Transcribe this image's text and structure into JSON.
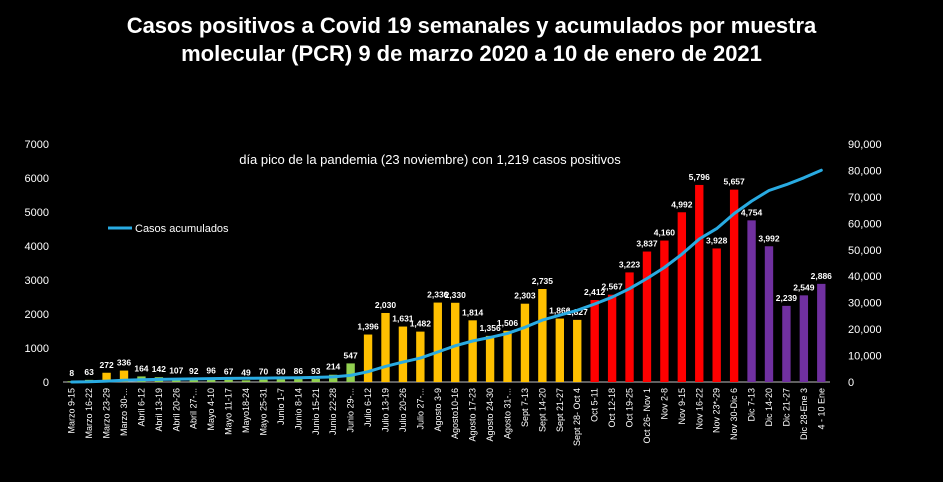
{
  "title_lines": [
    "Casos positivos a Covid 19 semanales y acumulados por muestra",
    "molecular (PCR) 9 de marzo 2020 a 10 de enero de 2021"
  ],
  "chart_data": {
    "type": "bar",
    "annotation": "día pico de la pandemia (23 noviembre) con 1,219 casos positivos",
    "legend": {
      "label": "Casos acumulados",
      "placement": "left"
    },
    "ylim": [
      0,
      7000
    ],
    "y_ticks": [
      0,
      1000,
      2000,
      3000,
      4000,
      5000,
      6000,
      7000
    ],
    "y2lim": [
      0,
      90000
    ],
    "y2_ticks": [
      "0",
      "10,000",
      "20,000",
      "30,000",
      "40,000",
      "50,000",
      "60,000",
      "70,000",
      "80,000",
      "90,000"
    ],
    "colors": {
      "green": "#92d050",
      "orange": "#ffc000",
      "red": "#ff0000",
      "purple": "#7030a0",
      "line": "#29abe2"
    },
    "categories": [
      "Marzo 9-15",
      "Marzo 16-22",
      "Marzo 23-29",
      "Marzo 30-...",
      "Abril 6-12",
      "Abril 13-19",
      "Abril 20-26",
      "Abril 27-...",
      "Mayo 4-10",
      "Mayo 11-17",
      "Mayo18-24",
      "Mayo 25-31",
      "Junio 1-7",
      "Junio 8-14",
      "Junio 15-21",
      "Junio 22-28",
      "Junio 29-...",
      "Julio 6-12",
      "Julio 13-19",
      "Julio 20-26",
      "Julio 27-...",
      "Agosto 3-9",
      "Agosto10-16",
      "Agosto 17-23",
      "Agosto 24-30",
      "Agosto 31-...",
      "Sept 7-13",
      "Sept 14-20",
      "Sept 21-27",
      "Sept 28- Oct 4",
      "Oct 5-11",
      "Oct 12-18",
      "Oct 19-25",
      "Oct 26- Nov 1",
      "Nov 2-8",
      "Nov 9-15",
      "Nov 16-22",
      "Nov 23*-29",
      "Nov 30-Dic 6",
      "Dic 7-13",
      "Dic 14-20",
      "Dic 21-27",
      "Dic 28-Ene 3",
      "4 - 10 Ene"
    ],
    "values": [
      8,
      63,
      272,
      336,
      164,
      142,
      107,
      92,
      96,
      67,
      49,
      70,
      80,
      86,
      93,
      214,
      547,
      1396,
      2030,
      1631,
      1482,
      2336,
      2330,
      1814,
      1356,
      1506,
      2303,
      2735,
      1866,
      1827,
      2412,
      2567,
      3223,
      3837,
      4160,
      4992,
      5796,
      3928,
      5657,
      4754,
      3992,
      2239,
      2549,
      2886
    ],
    "value_labels": [
      "8",
      "63",
      "272",
      "336",
      "164",
      "142",
      "107",
      "92",
      "96",
      "67",
      "49",
      "70",
      "80",
      "86",
      "93",
      "214",
      "547",
      "1,396",
      "2,030",
      "1,631",
      "1,482",
      "2,336",
      "2,330",
      "1,814",
      "1,356",
      "1,506",
      "2,303",
      "2,735",
      "1,866",
      "1,827",
      "2,412",
      "2,567",
      "3,223",
      "3,837",
      "4,160",
      "4,992",
      "5,796",
      "3,928",
      "5,657",
      "4,754",
      "3,992",
      "2,239",
      "2,549",
      "2,886"
    ],
    "bar_colors": [
      "green",
      "green",
      "orange",
      "orange",
      "green",
      "green",
      "green",
      "green",
      "green",
      "green",
      "green",
      "green",
      "green",
      "green",
      "green",
      "green",
      "green",
      "orange",
      "orange",
      "orange",
      "orange",
      "orange",
      "orange",
      "orange",
      "orange",
      "orange",
      "orange",
      "orange",
      "orange",
      "orange",
      "red",
      "red",
      "red",
      "red",
      "red",
      "red",
      "red",
      "red",
      "red",
      "purple",
      "purple",
      "purple",
      "purple",
      "purple"
    ],
    "series": [
      {
        "name": "Casos acumulados",
        "type": "line",
        "axis": "secondary",
        "values": [
          8,
          71,
          343,
          679,
          843,
          985,
          1092,
          1184,
          1280,
          1347,
          1396,
          1466,
          1546,
          1632,
          1725,
          1939,
          2486,
          3882,
          5912,
          7543,
          9025,
          11361,
          13691,
          15505,
          16861,
          18367,
          20670,
          23405,
          25271,
          27098,
          29510,
          32077,
          35300,
          39137,
          43297,
          48289,
          54085,
          58013,
          63670,
          68424,
          72416,
          74655,
          77204,
          80090
        ]
      }
    ]
  }
}
